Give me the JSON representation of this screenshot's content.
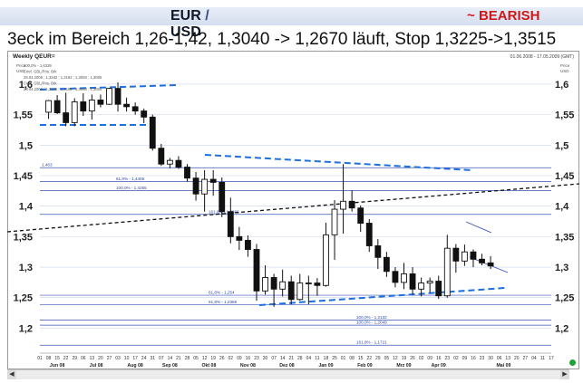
{
  "header": {
    "pair_base": "EUR",
    "pair_sep": "/",
    "pair_quote": "USD",
    "trend_prefix": "~",
    "trend": "BEARISH",
    "subtitle": "3eck im Bereich 1,26-1,42, 1,3040 -> 1,2670 läuft, Stop 1,3225->1,3515"
  },
  "chart_data": {
    "type": "candlestick",
    "title": "Weekly QEUR=",
    "date_range": "01.06.2008 - 17.05.2009 (GMT)",
    "ylim": [
      1.165,
      1.64
    ],
    "yticks": [
      1.2,
      1.25,
      1.3,
      1.35,
      1.4,
      1.45,
      1.5,
      1.55,
      1.6
    ],
    "ytick_labels": [
      "1,2",
      "1,25",
      "1,3",
      "1,35",
      "1,4",
      "1,45",
      "1,5",
      "1,55",
      "1,6"
    ],
    "xtick_labels": [
      "01",
      "08",
      "15",
      "22",
      "29",
      "06",
      "13",
      "20",
      "27",
      "03",
      "10",
      "17",
      "24",
      "31",
      "07",
      "14",
      "21",
      "28",
      "05",
      "12",
      "19",
      "26",
      "02",
      "09",
      "16",
      "23",
      "30",
      "07",
      "14",
      "21",
      "28",
      "04",
      "11",
      "18",
      "25",
      "01",
      "08",
      "15",
      "22",
      "29",
      "05",
      "12",
      "19",
      "26",
      "02",
      "09",
      "16",
      "23",
      "02",
      "09",
      "16",
      "23",
      "30",
      "06",
      "13",
      "20",
      "27",
      "04",
      "11",
      "17"
    ],
    "month_labels": [
      "Jun 08",
      "Jul 08",
      "Aug 08",
      "Sep 08",
      "Okt 08",
      "Nov 08",
      "Dez 08",
      "Jan 09",
      "Feb 09",
      "Mrz 09",
      "Apr 09",
      "Mai 09"
    ],
    "candles": [
      [
        1.554,
        1.574,
        1.543,
        1.573
      ],
      [
        1.573,
        1.582,
        1.551,
        1.553
      ],
      [
        1.553,
        1.586,
        1.531,
        1.537
      ],
      [
        1.537,
        1.577,
        1.531,
        1.571
      ],
      [
        1.571,
        1.585,
        1.548,
        1.556
      ],
      [
        1.556,
        1.583,
        1.542,
        1.574
      ],
      [
        1.574,
        1.583,
        1.562,
        1.567
      ],
      [
        1.567,
        1.594,
        1.566,
        1.593
      ],
      [
        1.593,
        1.603,
        1.555,
        1.567
      ],
      [
        1.567,
        1.578,
        1.555,
        1.563
      ],
      [
        1.563,
        1.57,
        1.55,
        1.556
      ],
      [
        1.556,
        1.56,
        1.536,
        1.546
      ],
      [
        1.546,
        1.55,
        1.491,
        1.495
      ],
      [
        1.495,
        1.502,
        1.466,
        1.469
      ],
      [
        1.469,
        1.479,
        1.462,
        1.475
      ],
      [
        1.475,
        1.482,
        1.461,
        1.464
      ],
      [
        1.464,
        1.469,
        1.44,
        1.446
      ],
      [
        1.446,
        1.456,
        1.409,
        1.42
      ],
      [
        1.42,
        1.459,
        1.391,
        1.444
      ],
      [
        1.444,
        1.459,
        1.417,
        1.439
      ],
      [
        1.439,
        1.447,
        1.382,
        1.391
      ],
      [
        1.391,
        1.414,
        1.339,
        1.35
      ],
      [
        1.35,
        1.366,
        1.328,
        1.344
      ],
      [
        1.344,
        1.352,
        1.317,
        1.329
      ],
      [
        1.329,
        1.338,
        1.245,
        1.261
      ],
      [
        1.261,
        1.303,
        1.255,
        1.283
      ],
      [
        1.283,
        1.289,
        1.235,
        1.264
      ],
      [
        1.264,
        1.296,
        1.252,
        1.276
      ],
      [
        1.276,
        1.286,
        1.239,
        1.247
      ],
      [
        1.247,
        1.289,
        1.245,
        1.274
      ],
      [
        1.274,
        1.286,
        1.239,
        1.274
      ],
      [
        1.274,
        1.282,
        1.253,
        1.27
      ],
      [
        1.27,
        1.373,
        1.268,
        1.353
      ],
      [
        1.353,
        1.41,
        1.312,
        1.395
      ],
      [
        1.395,
        1.469,
        1.355,
        1.408
      ],
      [
        1.408,
        1.426,
        1.391,
        1.397
      ],
      [
        1.397,
        1.401,
        1.358,
        1.372
      ],
      [
        1.372,
        1.379,
        1.325,
        1.335
      ],
      [
        1.335,
        1.346,
        1.297,
        1.316
      ],
      [
        1.316,
        1.325,
        1.284,
        1.293
      ],
      [
        1.293,
        1.3,
        1.267,
        1.275
      ],
      [
        1.275,
        1.307,
        1.264,
        1.289
      ],
      [
        1.289,
        1.3,
        1.255,
        1.264
      ],
      [
        1.264,
        1.283,
        1.252,
        1.274
      ],
      [
        1.274,
        1.283,
        1.258,
        1.277
      ],
      [
        1.277,
        1.286,
        1.248,
        1.253
      ],
      [
        1.253,
        1.353,
        1.25,
        1.331
      ],
      [
        1.331,
        1.338,
        1.291,
        1.31
      ],
      [
        1.31,
        1.337,
        1.302,
        1.325
      ],
      [
        1.325,
        1.329,
        1.3,
        1.313
      ],
      [
        1.313,
        1.322,
        1.303,
        1.307
      ],
      [
        1.307,
        1.318,
        1.297,
        1.302
      ]
    ],
    "xaxis_first_tick": "01",
    "reference_levels": [
      {
        "value": 1.463,
        "label": "1,463"
      },
      {
        "value": 1.4405,
        "label": "61,8% - 1,4405"
      },
      {
        "value": 1.4255,
        "label": "100,0% - 1,4255"
      },
      {
        "value": 1.3865,
        "label": "161,8% - 1,3865"
      },
      {
        "value": 1.254,
        "label": "61,8% - 1,254"
      },
      {
        "value": 1.2386,
        "label": "61,8% - 1,2386"
      },
      {
        "value": 1.2132,
        "label": "100,0% - 1,2132"
      },
      {
        "value": 1.2049,
        "label": "100,0% - 1,2049"
      },
      {
        "value": 1.1721,
        "label": "161,8% - 1,1721"
      }
    ],
    "annotations": [
      "100,0% - 1,6339",
      "Cntrl. GBL/Pris. Brk",
      "28.04.2008 ; 1,3182 ; 1,3192 ; 1,3093 ; 1,3085",
      "Cntrl. GBL/Pris. Brk",
      "28.04.2008 ; 1,3182 ; 1,3192 ; 1,3093 ; 1,3085"
    ],
    "legend_labels": [
      "Price",
      "USD"
    ]
  }
}
